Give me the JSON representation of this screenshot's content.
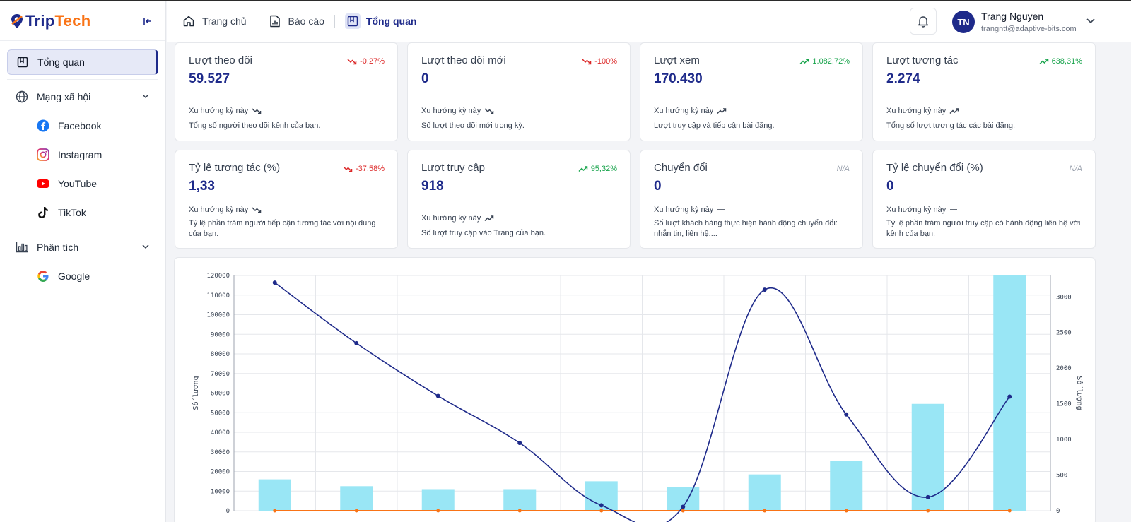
{
  "app": {
    "brand_part1": "Trip",
    "brand_part2": "Tech"
  },
  "sidebar": {
    "items": [
      {
        "label": "Tổng quan",
        "icon": "dashboard-icon",
        "active": true
      },
      {
        "label": "Mạng xã hội",
        "icon": "globe-icon",
        "expandable": true
      },
      {
        "label": "Facebook",
        "icon": "facebook-icon"
      },
      {
        "label": "Instagram",
        "icon": "instagram-icon"
      },
      {
        "label": "YouTube",
        "icon": "youtube-icon"
      },
      {
        "label": "TikTok",
        "icon": "tiktok-icon"
      },
      {
        "label": "Phân tích",
        "icon": "bar-chart-icon",
        "expandable": true
      },
      {
        "label": "Google",
        "icon": "google-icon"
      }
    ]
  },
  "header": {
    "breadcrumbs": [
      {
        "label": "Trang chủ",
        "icon": "home-icon"
      },
      {
        "label": "Báo cáo",
        "icon": "report-icon"
      },
      {
        "label": "Tổng quan",
        "icon": "dashboard-icon",
        "current": true
      }
    ],
    "user": {
      "initials": "TN",
      "name": "Trang Nguyen",
      "email": "trangntt@adaptive-bits.com"
    }
  },
  "colors": {
    "brand": "#1e2a8a",
    "accent": "#f97316",
    "down": "#dc2626",
    "up": "#16a34a",
    "bar": "#99e6f5",
    "line": "#1e2a8a"
  },
  "cards": [
    {
      "title": "Lượt theo dõi",
      "change": "-0,27%",
      "dir": "down",
      "value": "59.527",
      "trend_label": "Xu hướng kỳ này",
      "desc": "Tổng số người theo dõi kênh của bạn."
    },
    {
      "title": "Lượt theo dõi mới",
      "change": "-100%",
      "dir": "down",
      "value": "0",
      "trend_label": "Xu hướng kỳ này",
      "desc": "Số lượt theo dõi mới trong kỳ."
    },
    {
      "title": "Lượt xem",
      "change": "1.082,72%",
      "dir": "up",
      "value": "170.430",
      "trend_label": "Xu hướng kỳ này",
      "desc": "Lượt truy cập và tiếp cận bài đăng."
    },
    {
      "title": "Lượt tương tác",
      "change": "638,31%",
      "dir": "up",
      "value": "2.274",
      "trend_label": "Xu hướng kỳ này",
      "desc": "Tổng số lượt tương tác các bài đăng."
    },
    {
      "title": "Tỷ lệ tương tác (%)",
      "change": "-37,58%",
      "dir": "down",
      "value": "1,33",
      "trend_label": "Xu hướng kỳ này",
      "desc": "Tỷ lệ phần trăm người tiếp cận tương tác với nội dung của bạn."
    },
    {
      "title": "Lượt truy cập",
      "change": "95,32%",
      "dir": "up",
      "value": "918",
      "trend_label": "Xu hướng kỳ này",
      "desc": "Số lượt truy cập vào Trang của bạn."
    },
    {
      "title": "Chuyển đổi",
      "change": "N/A",
      "dir": "na",
      "value": "0",
      "trend_label": "Xu hướng kỳ này",
      "desc": "Số lượt khách hàng thực hiện hành động chuyển đổi: nhắn tin, liên hệ...."
    },
    {
      "title": "Tỷ lệ chuyển đổi (%)",
      "change": "N/A",
      "dir": "na",
      "value": "0",
      "trend_label": "Xu hướng kỳ này",
      "desc": "Tỷ lệ phần trăm người truy cập có hành động liên hệ với kênh của bạn."
    }
  ],
  "chart_data": {
    "type": "bar",
    "title": "",
    "ylabel": "Số lượng",
    "y2label": "Số lượng",
    "ylim": [
      0,
      120000
    ],
    "y2lim": [
      0,
      3300
    ],
    "yticks": [
      0,
      10000,
      20000,
      30000,
      40000,
      50000,
      60000,
      70000,
      80000,
      90000,
      100000,
      110000,
      120000
    ],
    "y2ticks": [
      0,
      500,
      1000,
      1500,
      2000,
      2500,
      3000
    ],
    "grid": true,
    "n_points": 10,
    "series": [
      {
        "kind": "bar",
        "axis": "left",
        "values": [
          16000,
          12500,
          11000,
          11000,
          15000,
          12000,
          18500,
          25500,
          54500,
          120000
        ]
      },
      {
        "kind": "line",
        "axis": "right",
        "values": [
          3200,
          2350,
          1610,
          950,
          75,
          55,
          3100,
          1350,
          190,
          1600
        ]
      },
      {
        "kind": "line",
        "axis": "left",
        "values": [
          0,
          0,
          0,
          0,
          0,
          0,
          0,
          0,
          0,
          0
        ]
      }
    ]
  }
}
